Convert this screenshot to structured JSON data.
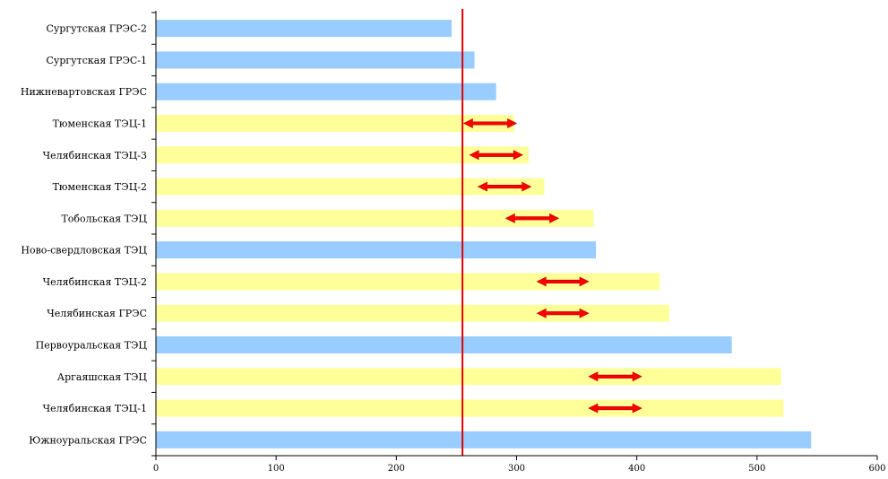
{
  "chart_data": {
    "type": "bar",
    "orientation": "horizontal",
    "categories": [
      "Сургутская ГРЭС-2",
      "Сургутская ГРЭС-1",
      "Нижневартовская ГРЭС",
      "Тюменская ТЭЦ-1",
      "Челябинская ТЭЦ-3",
      "Тюменская ТЭЦ-2",
      "Тобольская ТЭЦ",
      "Ново-свердловская ТЭЦ",
      "Челябинская ТЭЦ-2",
      "Челябинская ГРЭС",
      "Первоуральская ТЭЦ",
      "Аргаяшская ТЭЦ",
      "Челябинская ТЭЦ-1",
      "Южноуральская ГРЭС"
    ],
    "values": [
      246,
      265,
      283,
      298,
      310,
      323,
      364,
      366,
      419,
      427,
      479,
      520,
      522,
      545
    ],
    "bar_colors": [
      "#99CCFF",
      "#99CCFF",
      "#99CCFF",
      "#FFFF99",
      "#FFFF99",
      "#FFFF99",
      "#FFFF99",
      "#99CCFF",
      "#FFFF99",
      "#FFFF99",
      "#99CCFF",
      "#FFFF99",
      "#FFFF99",
      "#99CCFF"
    ],
    "xlim": [
      0,
      600
    ],
    "xticks": [
      "0",
      "100",
      "200",
      "300",
      "400",
      "500",
      "600"
    ],
    "reference_line": {
      "x": 255,
      "color": "#E00000"
    },
    "arrows": [
      {
        "category": "Тюменская ТЭЦ-1",
        "x_start": 256,
        "x_end": 300
      },
      {
        "category": "Челябинская ТЭЦ-3",
        "x_start": 261,
        "x_end": 305
      },
      {
        "category": "Тюменская ТЭЦ-2",
        "x_start": 268,
        "x_end": 312
      },
      {
        "category": "Тобольская ТЭЦ",
        "x_start": 291,
        "x_end": 335
      },
      {
        "category": "Челябинская ТЭЦ-2",
        "x_start": 317,
        "x_end": 360
      },
      {
        "category": "Челябинская ГРЭС",
        "x_start": 317,
        "x_end": 360
      },
      {
        "category": "Аргаяшская ТЭЦ",
        "x_start": 360,
        "x_end": 404
      },
      {
        "category": "Челябинская ТЭЦ-1",
        "x_start": 360,
        "x_end": 404
      }
    ],
    "arrow_color": "#FF0000",
    "grid": false,
    "title": "",
    "xlabel": "",
    "ylabel": ""
  }
}
